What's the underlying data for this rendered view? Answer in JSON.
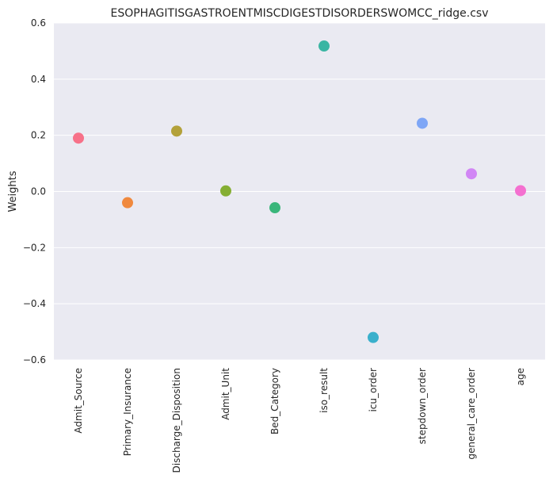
{
  "chart_data": {
    "type": "scatter",
    "title": "ESOPHAGITISGASTROENTMISCDIGESTDISORDERSWOMCC_ridge.csv",
    "xlabel": "",
    "ylabel": "Weights",
    "categories": [
      "Admit_Source",
      "Primary_Insurance",
      "Discharge_Disposition",
      "Admit_Unit",
      "Bed_Category",
      "iso_result",
      "icu_order",
      "stepdown_order",
      "general_care_order",
      "age"
    ],
    "values": [
      0.19,
      -0.04,
      0.215,
      0.002,
      -0.058,
      0.518,
      -0.52,
      0.243,
      0.063,
      0.003
    ],
    "colors": [
      "#f77189",
      "#f0893e",
      "#b3a13a",
      "#85ae33",
      "#3ab67b",
      "#3ab5a3",
      "#3ab0cc",
      "#7ea6f6",
      "#d186f5",
      "#f470d0"
    ],
    "ylim": [
      -0.6,
      0.6
    ],
    "yticks": [
      -0.6,
      -0.4,
      -0.2,
      0.0,
      0.2,
      0.4,
      0.6
    ],
    "ytick_labels": [
      "−0.6",
      "−0.4",
      "−0.2",
      "0.0",
      "0.2",
      "0.4",
      "0.6"
    ],
    "grid": true,
    "background_color": "#eaeaf2",
    "grid_color": "#ffffff"
  }
}
